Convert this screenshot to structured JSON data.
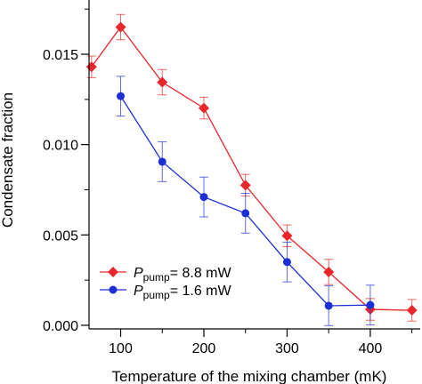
{
  "chart_data": {
    "type": "line",
    "title": "",
    "xlabel": "Temperature of the mixing chamber (mK)",
    "ylabel": "Condensate fraction",
    "xlim": [
      62,
      460
    ],
    "ylim": [
      -0.0002,
      0.018
    ],
    "x_ticks": [
      {
        "value": 100,
        "label": "100"
      },
      {
        "value": 200,
        "label": "200"
      },
      {
        "value": 300,
        "label": "300"
      },
      {
        "value": 400,
        "label": "400"
      }
    ],
    "y_ticks": [
      {
        "value": 0.0,
        "label": "0.000"
      },
      {
        "value": 0.005,
        "label": "0.005"
      },
      {
        "value": 0.01,
        "label": "0.010"
      },
      {
        "value": 0.015,
        "label": "0.015"
      }
    ],
    "grid": false,
    "legend_position": "bottom-left",
    "series": [
      {
        "legend_symbol": "P",
        "legend_subscript": "pump",
        "legend_value": "= 8.8 mW",
        "color": "#e8262b",
        "marker": "diamond",
        "x": [
          65,
          100,
          150,
          200,
          250,
          300,
          350,
          400,
          450
        ],
        "y": [
          0.0143,
          0.0165,
          0.01345,
          0.01202,
          0.00775,
          0.00495,
          0.00295,
          0.00088,
          0.00083
        ],
        "err": [
          0.0006,
          0.0007,
          0.0007,
          0.0006,
          0.0006,
          0.0006,
          0.0007,
          0.0006,
          0.0006
        ]
      },
      {
        "legend_symbol": "P",
        "legend_subscript": "pump",
        "legend_value": "= 1.6 mW",
        "color": "#1c2fd6",
        "marker": "circle",
        "x": [
          100,
          150,
          200,
          250,
          300,
          350,
          400
        ],
        "y": [
          0.01268,
          0.00905,
          0.0071,
          0.0062,
          0.0035,
          0.00108,
          0.00112
        ],
        "err": [
          0.0011,
          0.0011,
          0.0011,
          0.0011,
          0.0011,
          0.0011,
          0.0011
        ]
      }
    ]
  }
}
